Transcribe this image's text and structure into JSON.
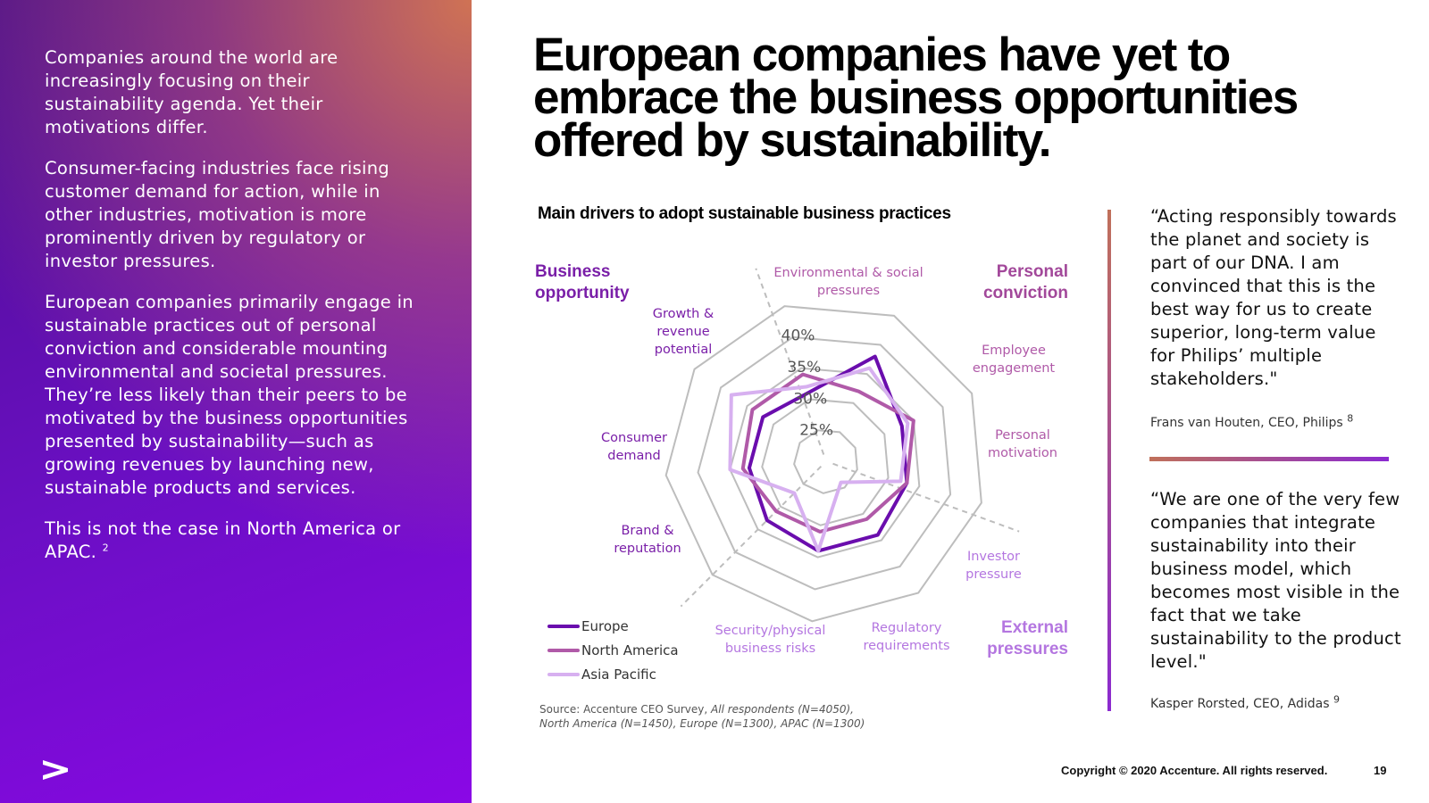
{
  "left_panel": {
    "paragraphs": [
      "Companies around the world are increasingly focusing on their sustainability agenda. Yet their motivations differ.",
      "Consumer-facing industries face rising customer demand for action, while in other industries, motivation is more prominently driven by regulatory or investor pressures.",
      "European companies primarily engage in sustainable practices out of personal conviction and considerable mounting environmental and societal pressures. They’re less likely than their peers to be motivated by the business opportunities presented by sustainability—such as growing revenues by launching new, sustainable products and services.",
      "This is not the case in North America or APAC."
    ],
    "footnote": "2"
  },
  "title": "European companies have yet to embrace the business opportunities offered by sustainability.",
  "chart": {
    "title": "Main drivers to adopt sustainable business practices",
    "groups": {
      "business": "Business opportunity",
      "personal": "Personal conviction",
      "external": "External pressures"
    },
    "source_prefix": "Source: Accenture CEO Survey, ",
    "source_italic_1": "All respondents (N=4050),",
    "source_italic_2": "North America (N=1450), Europe (N=1300), APAC (N=1300)"
  },
  "chart_data": {
    "type": "radar",
    "categories": [
      "Environmental & social pressures",
      "Employee engagement",
      "Personal motivation",
      "Investor pressure",
      "Regulatory requirements",
      "Security/physical business risks",
      "Brand & reputation",
      "Consumer demand",
      "Growth & revenue potential"
    ],
    "tick_labels": [
      "25%",
      "30%",
      "35%",
      "40%"
    ],
    "rmin": 20,
    "rmax": 45,
    "grid_rings": [
      25,
      30,
      35,
      40,
      45
    ],
    "series": [
      {
        "name": "Europe",
        "color": "#6a0dad",
        "values": [
          38,
          33,
          33,
          34,
          34,
          33,
          32,
          32,
          31
        ]
      },
      {
        "name": "North America",
        "color": "#b05aa8",
        "values": [
          32,
          35,
          33,
          31,
          31,
          31,
          33,
          34,
          34
        ]
      },
      {
        "name": "Asia Pacific",
        "color": "#d7b0f0",
        "values": [
          36,
          34,
          32,
          24,
          34,
          27,
          35,
          38,
          32
        ]
      }
    ],
    "colors": {
      "grid": "#bdbdbd",
      "dashed": "#bdbdbd",
      "label_purple": "#7a1fa8",
      "label_magenta": "#a2489a",
      "label_lilac": "#b476e0"
    }
  },
  "quotes": [
    {
      "text": "“Acting responsibly towards the planet and society is part of our DNA. I am convinced that this is the best way for us to create superior, long-term value for Philips’ multiple stakeholders.\"",
      "attribution": "Frans van Houten, CEO, Philips",
      "note": "8"
    },
    {
      "text": "“We are one of the very few companies that integrate sustainability into their business model, which becomes most visible in the fact that we take sustainability to the product level.\"",
      "attribution": "Kasper Rorsted, CEO, Adidas",
      "note": "9"
    }
  ],
  "footer": {
    "copyright": "Copyright © 2020 Accenture. All rights reserved.",
    "page_number": "19"
  }
}
